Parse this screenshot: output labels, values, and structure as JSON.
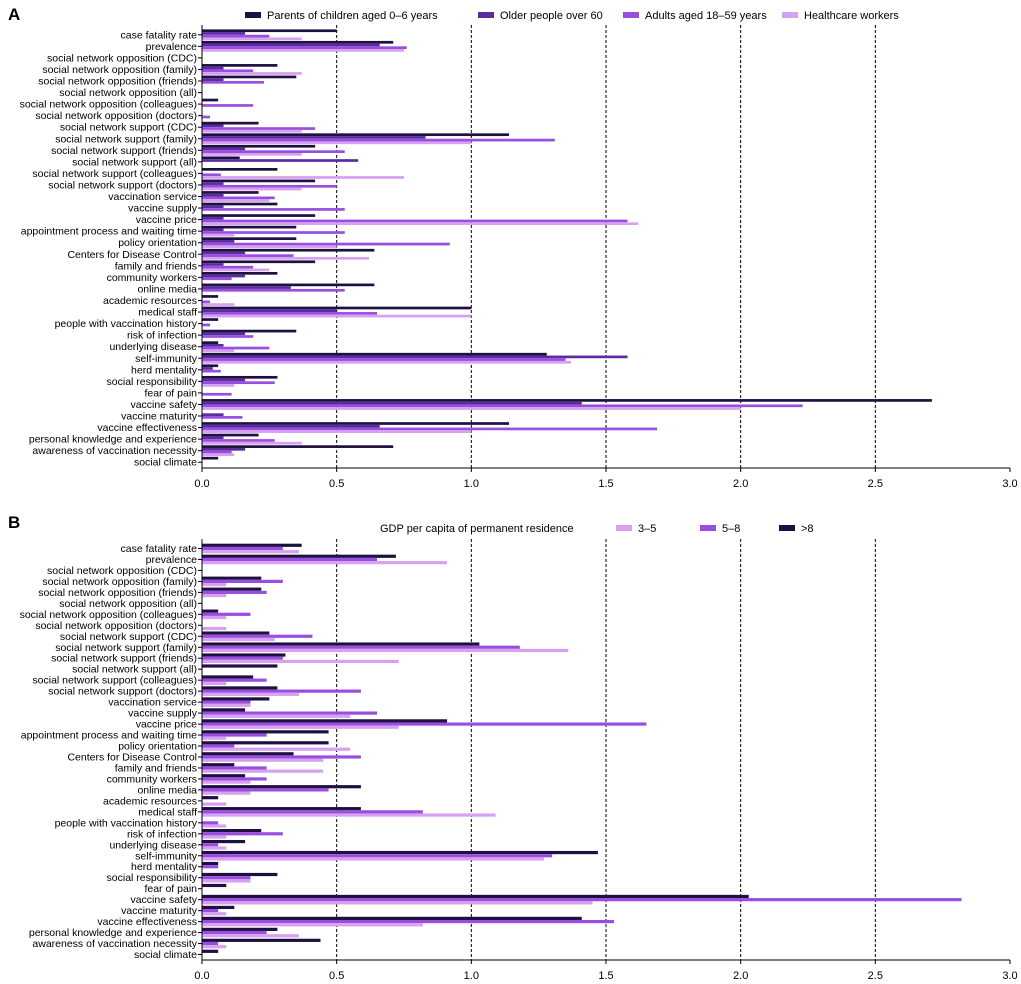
{
  "chart_data": [
    {
      "panel": "A",
      "type": "bar",
      "orientation": "horizontal",
      "categories": [
        "case fatality rate",
        "prevalence",
        "social network opposition (CDC)",
        "social network opposition (family)",
        "social network opposition (friends)",
        "social network opposition (all)",
        "social network opposition (colleagues)",
        "social network opposition (doctors)",
        "social network support (CDC)",
        "social network support (family)",
        "social network support (friends)",
        "social network support (all)",
        "social network support (colleagues)",
        "social network support (doctors)",
        "vaccination service",
        "vaccine supply",
        "vaccine price",
        "appointment process and waiting time",
        "policy orientation",
        "Centers for Disease Control",
        "family and friends",
        "community workers",
        "online media",
        "academic resources",
        "medical staff",
        "people with vaccination history",
        "risk of infection",
        "underlying disease",
        "self-immunity",
        "herd mentality",
        "social responsibility",
        "fear of pain",
        "vaccine safety",
        "vaccine maturity",
        "vaccine effectiveness",
        "personal knowledge and experience",
        "awareness of vaccination necessity",
        "social climate"
      ],
      "series": [
        {
          "name": "Parents of children aged 0–6 years",
          "color": "#1e1040",
          "values": [
            0.5,
            0.71,
            0,
            0.28,
            0.35,
            0,
            0.06,
            0,
            0.21,
            1.14,
            0.42,
            0.14,
            0.28,
            0.42,
            0.21,
            0.28,
            0.42,
            0.35,
            0.35,
            0.64,
            0.42,
            0.28,
            0.64,
            0.06,
            1.0,
            0.06,
            0.35,
            0.06,
            1.28,
            0.06,
            0.28,
            0,
            2.71,
            0,
            1.14,
            0.21,
            0.71,
            0.06
          ]
        },
        {
          "name": "Older people over 60",
          "color": "#5a2ca0",
          "values": [
            0.16,
            0.66,
            0,
            0.08,
            0.08,
            0,
            0,
            0,
            0.08,
            0.83,
            0.16,
            0.58,
            0,
            0.08,
            0.08,
            0.08,
            0.08,
            0.08,
            0.12,
            0.16,
            0.08,
            0.16,
            0.33,
            0,
            0.5,
            0,
            0.16,
            0.08,
            1.58,
            0.04,
            0.16,
            0,
            1.41,
            0.08,
            0.66,
            0.08,
            0.16,
            0
          ]
        },
        {
          "name": "Adults aged 18–59 years",
          "color": "#9a4ee0",
          "values": [
            0.25,
            0.76,
            0,
            0.19,
            0.23,
            0,
            0.19,
            0.03,
            0.42,
            1.31,
            0.53,
            0,
            0.07,
            0.5,
            0.27,
            0.53,
            1.58,
            0.53,
            0.92,
            0.34,
            0.19,
            0.11,
            0.53,
            0.03,
            0.65,
            0.03,
            0.19,
            0.25,
            1.35,
            0.07,
            0.27,
            0.11,
            2.23,
            0.15,
            1.69,
            0.27,
            0.11,
            0
          ]
        },
        {
          "name": "Healthcare workers",
          "color": "#d8a0f0",
          "values": [
            0.37,
            0.75,
            0,
            0.37,
            0,
            0,
            0,
            0,
            0.37,
            1.0,
            0.37,
            0,
            0.75,
            0.37,
            0.25,
            0,
            1.62,
            0.12,
            0.5,
            0.62,
            0.25,
            0,
            0,
            0.12,
            1.0,
            0,
            0,
            0.12,
            1.37,
            0,
            0.12,
            0,
            2.0,
            0,
            1.0,
            0.37,
            0.12,
            0
          ]
        }
      ],
      "xlim": [
        0,
        3.0
      ],
      "xticks": [
        "0.0",
        "0.5",
        "1.0",
        "1.5",
        "2.0",
        "2.5",
        "3.0"
      ],
      "gridlines": "dashed vertical at 0.5 intervals",
      "legend_position": "top"
    },
    {
      "panel": "B",
      "type": "bar",
      "orientation": "horizontal",
      "legend_title": "GDP per capita of permanent residence",
      "categories": [
        "case fatality rate",
        "prevalence",
        "social network opposition (CDC)",
        "social network opposition (family)",
        "social network opposition (friends)",
        "social network opposition (all)",
        "social network opposition (colleagues)",
        "social network opposition (doctors)",
        "social network support (CDC)",
        "social network support (family)",
        "social network support (friends)",
        "social network support (all)",
        "social network support (colleagues)",
        "social network support (doctors)",
        "vaccination service",
        "vaccine supply",
        "vaccine price",
        "appointment process and waiting time",
        "policy orientation",
        "Centers for Disease Control",
        "family and friends",
        "community workers",
        "online media",
        "academic resources",
        "medical staff",
        "people with vaccination history",
        "risk of infection",
        "underlying disease",
        "self-immunity",
        "herd mentality",
        "social responsibility",
        "fear of pain",
        "vaccine safety",
        "vaccine maturity",
        "vaccine effectiveness",
        "personal knowledge and experience",
        "awareness of vaccination necessity",
        "social climate"
      ],
      "series": [
        {
          "name": ">8",
          "color": "#1e1040",
          "values": [
            0.37,
            0.72,
            0,
            0.22,
            0.22,
            0,
            0.06,
            0,
            0.25,
            1.03,
            0.31,
            0.28,
            0.19,
            0.28,
            0.25,
            0.16,
            0.91,
            0.47,
            0.47,
            0.34,
            0.12,
            0.16,
            0.59,
            0.06,
            0.59,
            0,
            0.22,
            0.16,
            1.47,
            0.06,
            0.28,
            0.09,
            2.03,
            0.12,
            1.41,
            0.28,
            0.44,
            0.06
          ]
        },
        {
          "name": "5–8",
          "color": "#9a4ee0",
          "values": [
            0.3,
            0.65,
            0,
            0.3,
            0.24,
            0,
            0.18,
            0,
            0.41,
            1.18,
            0.3,
            0,
            0.24,
            0.59,
            0.18,
            0.65,
            1.65,
            0.24,
            0.12,
            0.59,
            0.24,
            0.24,
            0.47,
            0,
            0.82,
            0.06,
            0.3,
            0.06,
            1.3,
            0.06,
            0.18,
            0,
            2.82,
            0.06,
            1.53,
            0.24,
            0.06,
            0
          ]
        },
        {
          "name": "3–5",
          "color": "#d8a0f0",
          "values": [
            0.36,
            0.91,
            0,
            0.09,
            0.09,
            0,
            0.09,
            0.09,
            0.27,
            1.36,
            0.73,
            0,
            0.09,
            0.36,
            0.18,
            0.55,
            0.73,
            0.09,
            0.55,
            0.45,
            0.45,
            0.18,
            0.18,
            0.09,
            1.09,
            0.09,
            0.09,
            0.09,
            1.27,
            0,
            0.18,
            0,
            1.45,
            0.09,
            0.82,
            0.36,
            0.09,
            0
          ]
        }
      ],
      "xlim": [
        0,
        3.0
      ],
      "xticks": [
        "0.0",
        "0.5",
        "1.0",
        "1.5",
        "2.0",
        "2.5",
        "3.0"
      ],
      "gridlines": "dashed vertical at 0.5 intervals",
      "legend_position": "top-right"
    }
  ]
}
